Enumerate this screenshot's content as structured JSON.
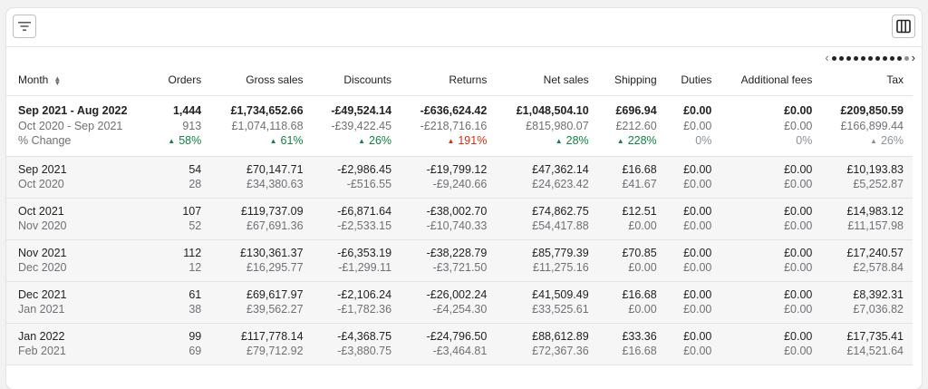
{
  "toolbar": {
    "filter_icon": "filter-lines-icon",
    "columns_icon": "columns-icon"
  },
  "pager": {
    "prev": "‹",
    "next": "›",
    "dots_active": 10,
    "dots_total": 11
  },
  "headers": [
    "Month",
    "Orders",
    "Gross sales",
    "Discounts",
    "Returns",
    "Net sales",
    "Shipping",
    "Duties",
    "Additional fees",
    "Tax"
  ],
  "summary": {
    "period_primary": "Sep 2021 - Aug 2022",
    "period_compare": "Oct 2020 - Sep 2021",
    "change_label": "% Change",
    "primary": [
      "1,444",
      "£1,734,652.66",
      "-£49,524.14",
      "-£636,624.42",
      "£1,048,504.10",
      "£696.94",
      "£0.00",
      "£0.00",
      "£209,850.59"
    ],
    "compare": [
      "913",
      "£1,074,118.68",
      "-£39,422.45",
      "-£218,716.16",
      "£815,980.07",
      "£212.60",
      "£0.00",
      "£0.00",
      "£166,899.44"
    ],
    "change": [
      {
        "text": "58%",
        "dir": "up"
      },
      {
        "text": "61%",
        "dir": "up"
      },
      {
        "text": "26%",
        "dir": "up"
      },
      {
        "text": "191%",
        "dir": "bad"
      },
      {
        "text": "28%",
        "dir": "up"
      },
      {
        "text": "228%",
        "dir": "up"
      },
      {
        "text": "0%",
        "dir": "none"
      },
      {
        "text": "0%",
        "dir": "none"
      },
      {
        "text": "26%",
        "dir": "neu"
      }
    ]
  },
  "rows": [
    {
      "month": "Sep 2021",
      "compare_month": "Oct 2020",
      "primary": [
        "54",
        "£70,147.71",
        "-£2,986.45",
        "-£19,799.12",
        "£47,362.14",
        "£16.68",
        "£0.00",
        "£0.00",
        "£10,193.83"
      ],
      "compare": [
        "28",
        "£34,380.63",
        "-£516.55",
        "-£9,240.66",
        "£24,623.42",
        "£41.67",
        "£0.00",
        "£0.00",
        "£5,252.87"
      ]
    },
    {
      "month": "Oct 2021",
      "compare_month": "Nov 2020",
      "primary": [
        "107",
        "£119,737.09",
        "-£6,871.64",
        "-£38,002.70",
        "£74,862.75",
        "£12.51",
        "£0.00",
        "£0.00",
        "£14,983.12"
      ],
      "compare": [
        "52",
        "£67,691.36",
        "-£2,533.15",
        "-£10,740.33",
        "£54,417.88",
        "£0.00",
        "£0.00",
        "£0.00",
        "£11,157.98"
      ]
    },
    {
      "month": "Nov 2021",
      "compare_month": "Dec 2020",
      "primary": [
        "112",
        "£130,361.37",
        "-£6,353.19",
        "-£38,228.79",
        "£85,779.39",
        "£70.85",
        "£0.00",
        "£0.00",
        "£17,240.57"
      ],
      "compare": [
        "12",
        "£16,295.77",
        "-£1,299.11",
        "-£3,721.50",
        "£11,275.16",
        "£0.00",
        "£0.00",
        "£0.00",
        "£2,578.84"
      ]
    },
    {
      "month": "Dec 2021",
      "compare_month": "Jan 2021",
      "primary": [
        "61",
        "£69,617.97",
        "-£2,106.24",
        "-£26,002.24",
        "£41,509.49",
        "£16.68",
        "£0.00",
        "£0.00",
        "£8,392.31"
      ],
      "compare": [
        "38",
        "£39,562.27",
        "-£1,782.36",
        "-£4,254.30",
        "£33,525.61",
        "£0.00",
        "£0.00",
        "£0.00",
        "£7,036.82"
      ]
    },
    {
      "month": "Jan 2022",
      "compare_month": "Feb 2021",
      "primary": [
        "99",
        "£117,778.14",
        "-£4,368.75",
        "-£24,796.50",
        "£88,612.89",
        "£33.36",
        "£0.00",
        "£0.00",
        "£17,735.41"
      ],
      "compare": [
        "69",
        "£79,712.92",
        "-£3,880.75",
        "-£3,464.81",
        "£72,367.36",
        "£16.68",
        "£0.00",
        "£0.00",
        "£14,521.64"
      ]
    }
  ],
  "colors": {
    "positive": "#108043",
    "negative": "#d72c0d",
    "neutral": "#8c9196"
  }
}
